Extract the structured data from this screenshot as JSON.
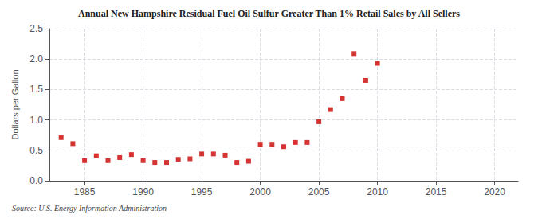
{
  "chart_data": {
    "type": "scatter",
    "title": "Annual New Hampshire Residual Fuel Oil Sulfur Greater Than 1% Retail Sales by All Sellers",
    "ylabel": "Dollars per Gallon",
    "annotations": [
      "Source: U.S. Energy Information Administration"
    ],
    "x": [
      1983,
      1984,
      1985,
      1986,
      1987,
      1988,
      1989,
      1990,
      1991,
      1992,
      1993,
      1994,
      1995,
      1996,
      1997,
      1998,
      1999,
      2000,
      2001,
      2002,
      2003,
      2004,
      2005,
      2006,
      2007,
      2008,
      2009,
      2010
    ],
    "values": [
      0.71,
      0.61,
      0.33,
      0.41,
      0.33,
      0.38,
      0.43,
      0.33,
      0.3,
      0.3,
      0.35,
      0.36,
      0.44,
      0.44,
      0.42,
      0.3,
      0.32,
      0.6,
      0.6,
      0.56,
      0.63,
      0.63,
      0.97,
      1.17,
      1.35,
      2.09,
      1.65,
      1.93
    ],
    "color": "#cc0000",
    "marker": "square",
    "xlim": [
      1982,
      2022
    ],
    "xticks": [
      1985,
      1990,
      1995,
      2000,
      2005,
      2010,
      2015,
      2020
    ],
    "ylim": [
      0.0,
      2.5
    ],
    "yticks": [
      {
        "value": 0.0,
        "label": "0.0"
      },
      0.5,
      {
        "value": 1.0,
        "label": "1.0"
      },
      1.5,
      {
        "value": 2.0,
        "label": "2.0"
      },
      2.5
    ],
    "grid": true
  }
}
